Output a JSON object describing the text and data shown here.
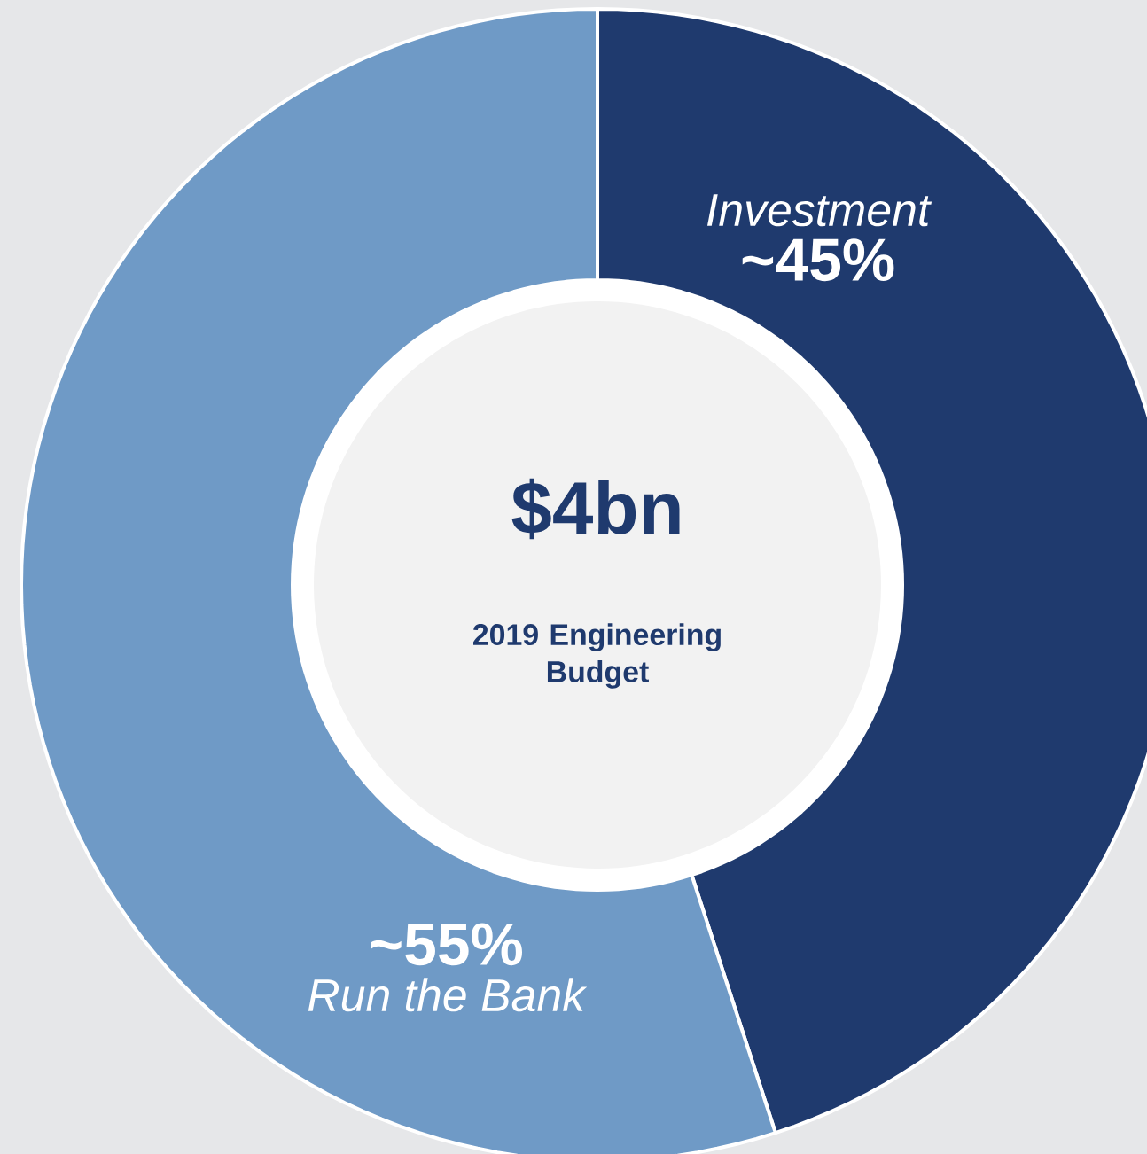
{
  "chart_data": {
    "type": "donut",
    "title": "$4bn",
    "subtitle": "2019 Engineering Budget",
    "categories": [
      "Investment",
      "Run the Bank"
    ],
    "values": [
      45,
      55
    ],
    "colors": [
      "#1f3a6e",
      "#6f9ac6"
    ],
    "value_labels": [
      "~45%",
      "~55%"
    ]
  }
}
